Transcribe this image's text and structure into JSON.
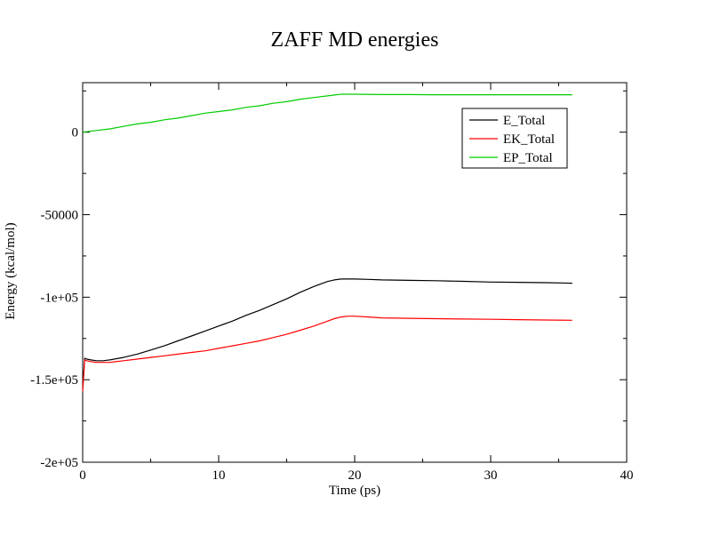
{
  "chart_data": {
    "type": "line",
    "title": "ZAFF MD energies",
    "xlabel": "Time (ps)",
    "ylabel": "Energy (kcal/mol)",
    "xlim": [
      0,
      40
    ],
    "ylim": [
      -200000,
      30000
    ],
    "x_major_ticks": [
      0,
      10,
      20,
      30,
      40
    ],
    "x_minor_step": 5,
    "y_major_ticks": [
      -200000,
      -150000,
      -100000,
      -50000,
      0
    ],
    "y_minor_step": 25000,
    "x_tick_labels": [
      "0",
      "10",
      "20",
      "30",
      "40"
    ],
    "y_tick_labels": [
      "-2e+05",
      "-1.5e+05",
      "-1e+05",
      "-50000",
      "0"
    ],
    "grid": false,
    "legend_position": "top-right",
    "series": [
      {
        "name": "E_Total",
        "color": "#000000",
        "x": [
          0,
          0.15,
          0.3,
          0.6,
          1,
          1.5,
          2,
          3,
          4,
          5,
          6,
          7,
          8,
          9,
          10,
          11,
          12,
          13,
          14,
          15,
          16,
          17,
          18,
          18.5,
          19,
          19.5,
          20,
          21,
          22,
          24,
          26,
          28,
          30,
          32,
          34,
          36
        ],
        "y": [
          -156000,
          -137000,
          -137500,
          -138000,
          -138500,
          -138500,
          -138000,
          -136500,
          -134500,
          -132000,
          -129500,
          -126500,
          -123500,
          -120500,
          -117500,
          -114500,
          -111000,
          -108000,
          -104500,
          -101000,
          -97000,
          -93500,
          -90500,
          -89500,
          -89000,
          -89000,
          -89000,
          -89200,
          -89500,
          -89800,
          -90000,
          -90400,
          -90800,
          -91000,
          -91200,
          -91500
        ]
      },
      {
        "name": "EK_Total",
        "color": "#ff0000",
        "x": [
          0,
          0.15,
          0.3,
          0.6,
          1,
          1.5,
          2,
          3,
          4,
          5,
          6,
          7,
          8,
          9,
          10,
          11,
          12,
          13,
          14,
          15,
          16,
          17,
          18,
          18.5,
          19,
          19.5,
          20,
          21,
          22,
          24,
          26,
          28,
          30,
          32,
          34,
          36
        ],
        "y": [
          -157000,
          -138000,
          -138500,
          -139000,
          -139500,
          -139500,
          -139500,
          -138500,
          -137500,
          -136500,
          -135500,
          -134500,
          -133500,
          -132500,
          -131000,
          -129500,
          -128000,
          -126500,
          -124500,
          -122500,
          -120000,
          -117500,
          -114500,
          -113000,
          -112000,
          -111500,
          -111500,
          -112000,
          -112500,
          -112800,
          -113000,
          -113200,
          -113400,
          -113600,
          -113800,
          -114000
        ]
      },
      {
        "name": "EP_Total",
        "color": "#00cc00",
        "x": [
          0,
          1,
          2,
          3,
          4,
          5,
          6,
          7,
          8,
          9,
          10,
          11,
          12,
          13,
          14,
          15,
          16,
          17,
          18,
          18.5,
          19,
          19.5,
          20,
          22,
          24,
          26,
          28,
          30,
          32,
          34,
          36
        ],
        "y": [
          0,
          1000,
          2000,
          3500,
          5000,
          6000,
          7500,
          8500,
          10000,
          11500,
          12500,
          13500,
          15000,
          16000,
          17500,
          18500,
          20000,
          21000,
          22000,
          22500,
          23000,
          23000,
          23000,
          22800,
          22800,
          22700,
          22700,
          22700,
          22700,
          22700,
          22700
        ]
      }
    ]
  }
}
